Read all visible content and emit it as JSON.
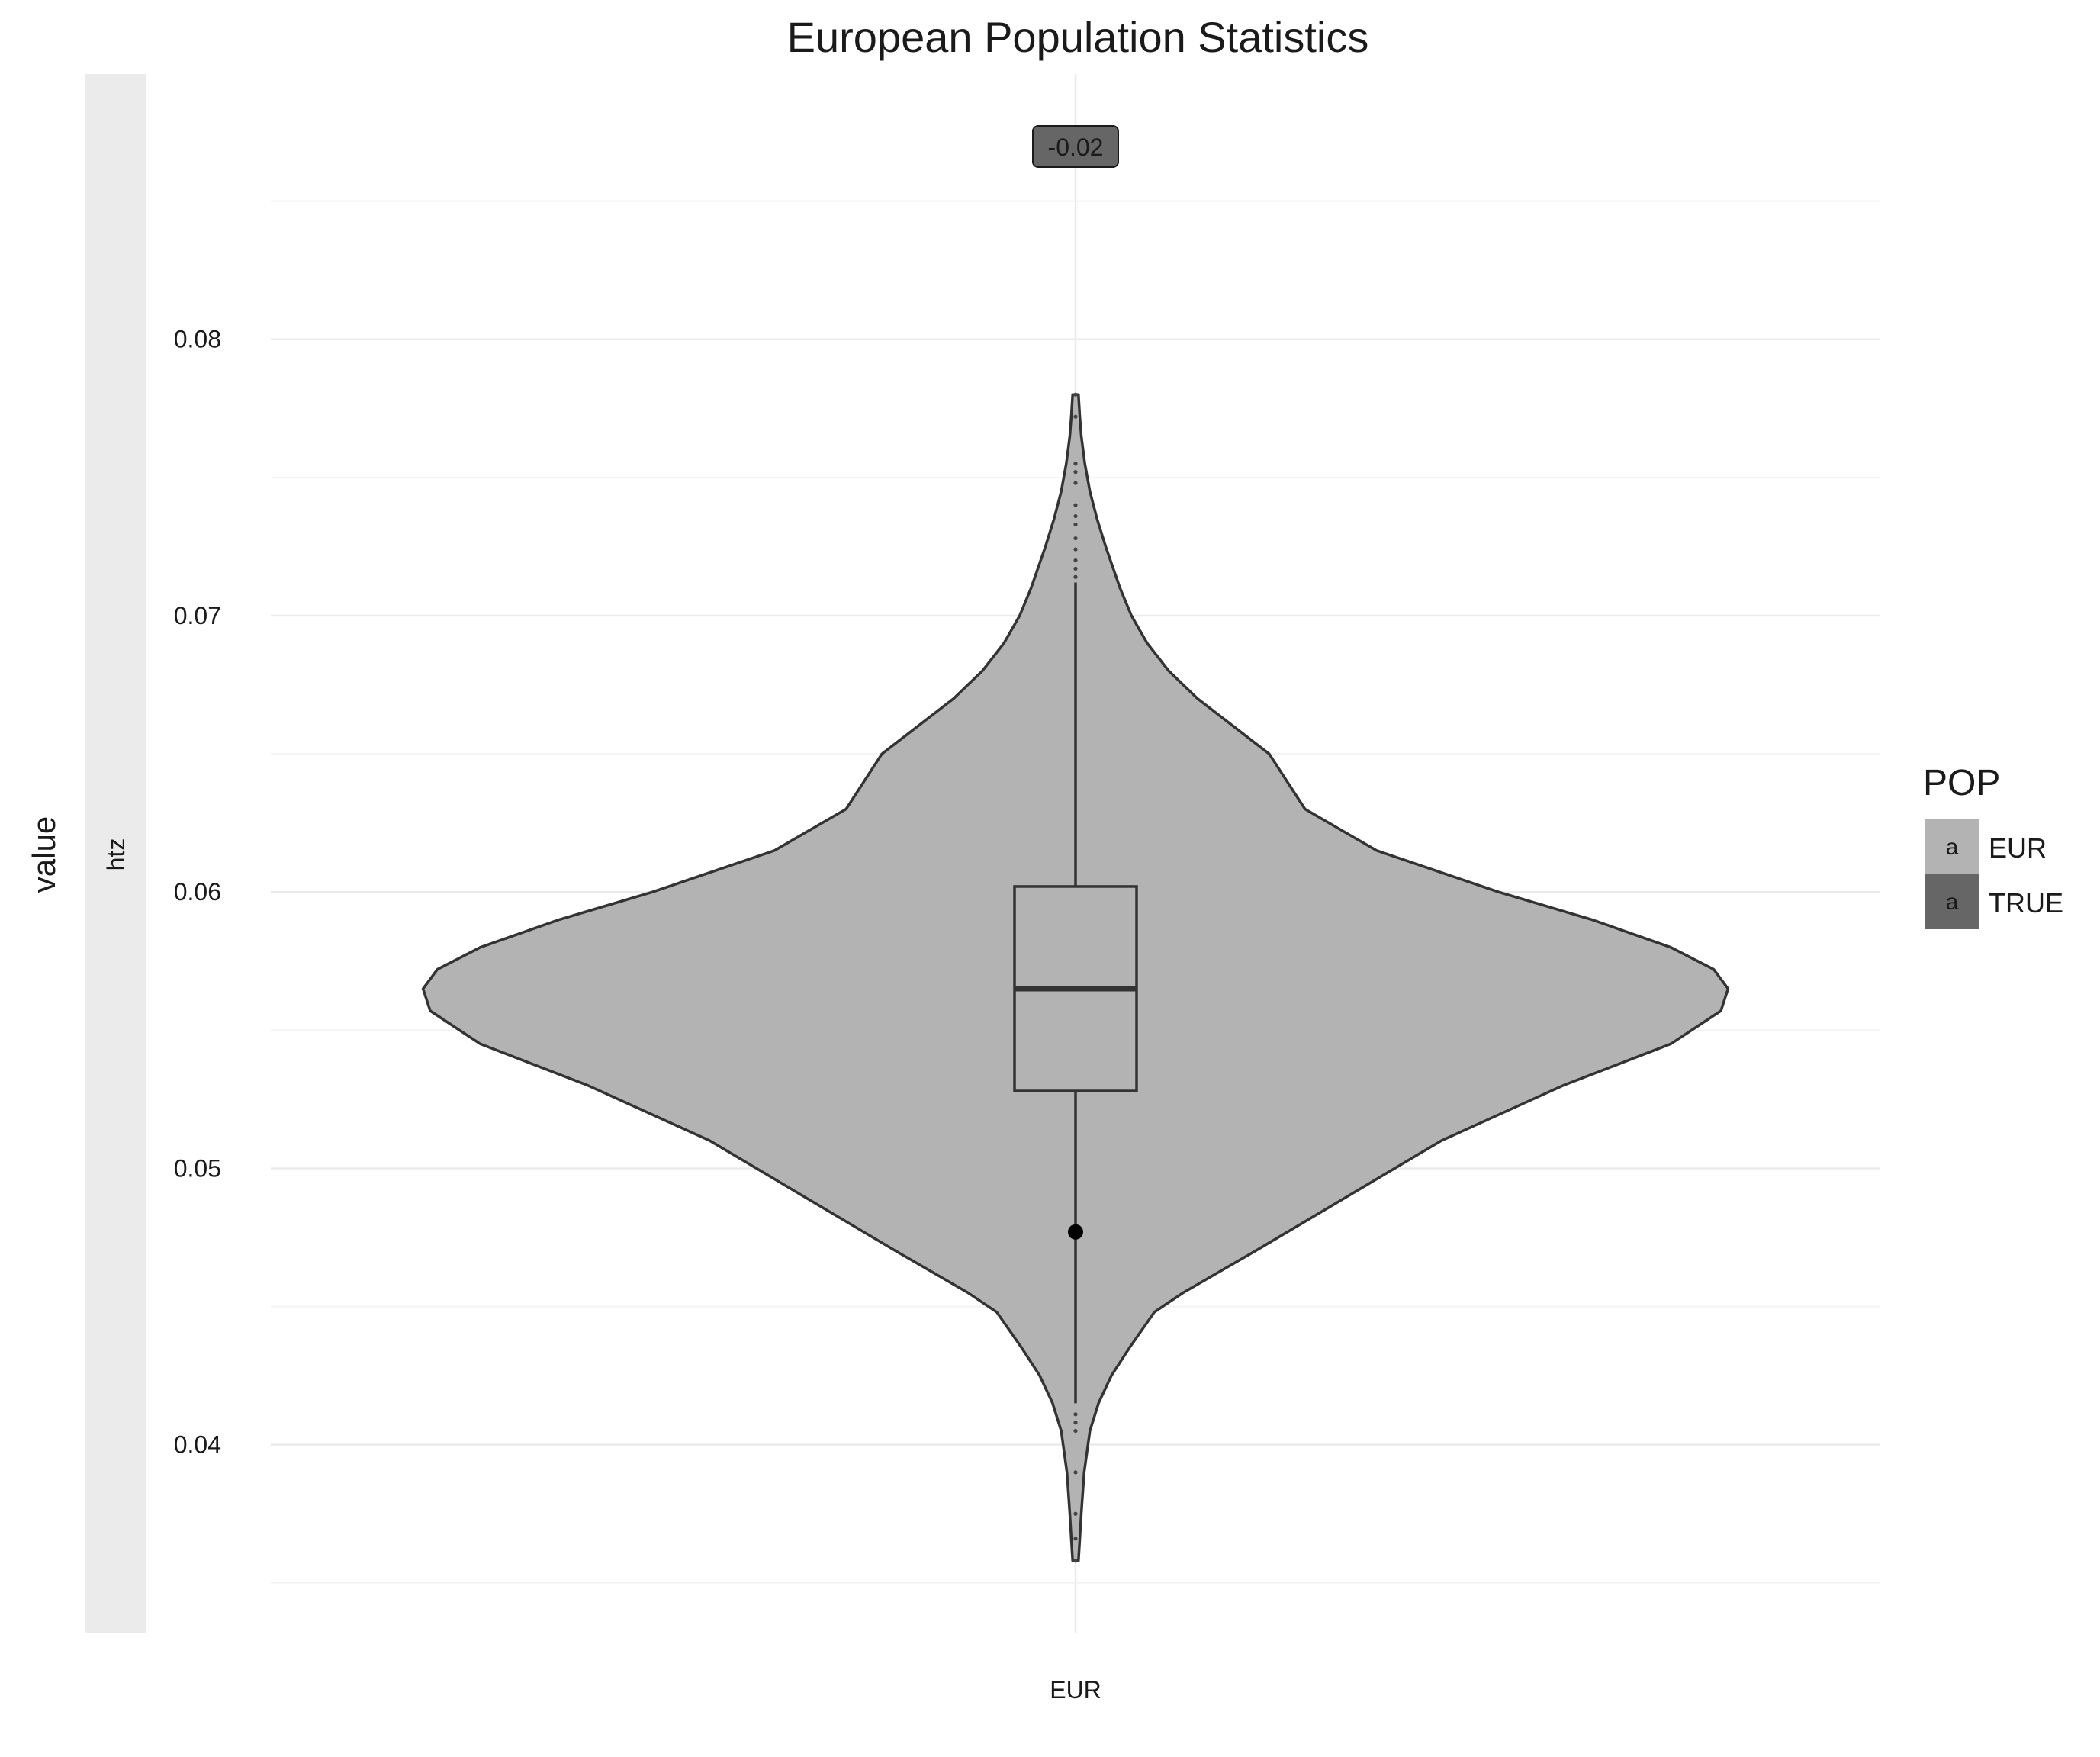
{
  "chart_data": {
    "type": "violin",
    "title": "European Population Statistics",
    "xlabel": "",
    "ylabel": "value",
    "facet_label": "htz",
    "categories": [
      "EUR"
    ],
    "ylim": [
      0.0332,
      0.0896
    ],
    "y_ticks": [
      0.04,
      0.05,
      0.06,
      0.07,
      0.08
    ],
    "y_tick_labels": [
      "0.04",
      "0.05",
      "0.06",
      "0.07",
      "0.08"
    ],
    "grid": true,
    "legend": {
      "title": "POP",
      "position": "right",
      "entries": [
        {
          "label": "EUR",
          "color": "#b3b3b3",
          "glyph": "a"
        },
        {
          "label": "TRUE",
          "color": "#666666",
          "glyph": "a"
        }
      ]
    },
    "series": [
      {
        "name": "EUR",
        "color": "#b3b3b3",
        "violin": {
          "y": [
            0.0358,
            0.0366,
            0.0375,
            0.039,
            0.0405,
            0.0415,
            0.0425,
            0.0435,
            0.0448,
            0.0455,
            0.047,
            0.049,
            0.051,
            0.053,
            0.0545,
            0.0557,
            0.0565,
            0.0572,
            0.058,
            0.059,
            0.06,
            0.0615,
            0.063,
            0.065,
            0.067,
            0.068,
            0.069,
            0.07,
            0.071,
            0.0725,
            0.0735,
            0.0745,
            0.0755,
            0.0765,
            0.0772,
            0.078
          ],
          "halfwidth": [
            0.004,
            0.006,
            0.008,
            0.012,
            0.02,
            0.032,
            0.05,
            0.075,
            0.11,
            0.15,
            0.25,
            0.38,
            0.51,
            0.68,
            0.83,
            0.9,
            0.91,
            0.89,
            0.83,
            0.72,
            0.59,
            0.42,
            0.32,
            0.27,
            0.17,
            0.13,
            0.1,
            0.078,
            0.062,
            0.042,
            0.03,
            0.02,
            0.013,
            0.008,
            0.006,
            0.004
          ]
        },
        "box": {
          "lower_whisker": 0.0415,
          "q1": 0.0528,
          "median": 0.0565,
          "q3": 0.0602,
          "upper_whisker": 0.0712
        },
        "outliers": [
          0.0358,
          0.0366,
          0.0375,
          0.039,
          0.0405,
          0.0408,
          0.0411,
          0.0714,
          0.0717,
          0.072,
          0.0724,
          0.0728,
          0.0733,
          0.0736,
          0.074,
          0.0748,
          0.0752,
          0.0755,
          0.0772,
          0.078
        ],
        "mean_point": 0.0477
      }
    ],
    "annotation": {
      "text": "-0.02",
      "category": "EUR"
    }
  }
}
